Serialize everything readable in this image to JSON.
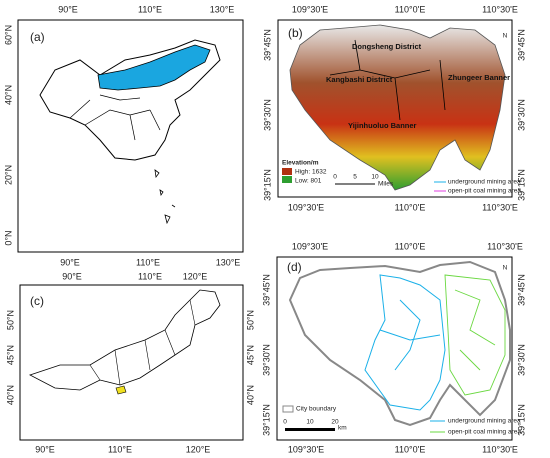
{
  "panels": [
    {
      "label": "(a)",
      "top_ticks": [
        "90°E",
        "110°E",
        "130°E"
      ],
      "bottom_ticks": [
        "90°E",
        "110°E",
        "130°E"
      ],
      "left_ticks": [
        "60°N",
        "40°N",
        "20°N",
        "0°N"
      ]
    },
    {
      "label": "(b)",
      "top_ticks": [
        "109°30'E",
        "110°0'E",
        "110°30'E"
      ],
      "bottom_ticks": [
        "109°30'E",
        "110°0'E",
        "110°30'E"
      ],
      "left_ticks": [
        "39°45'N",
        "39°30'N",
        "39°15'N"
      ],
      "right_ticks": [
        "39°45'N",
        "39°30'N",
        "39°15'N"
      ],
      "places": [
        "Dongsheng District",
        "Kangbashi District",
        "Zhungeer Banner",
        "Yijinhuoluo Banner"
      ],
      "legend": {
        "title": "Elevation/m",
        "high": "High: 1632",
        "low": "Low: 801",
        "scale": [
          "0",
          "5",
          "10"
        ],
        "scale_unit": "Miles",
        "items": [
          "underground mining area",
          "open-pit coal mining area"
        ]
      },
      "north": "N"
    },
    {
      "label": "(c)",
      "top_ticks": [
        "90°E",
        "110°E",
        "120°E"
      ],
      "bottom_ticks": [
        "90°E",
        "110°E",
        "120°E"
      ],
      "left_ticks": [
        "50°N",
        "45°N",
        "40°N"
      ],
      "right_ticks": [
        "50°N",
        "45°N",
        "40°N"
      ]
    },
    {
      "label": "(d)",
      "top_ticks": [
        "109°30'E",
        "110°0'E",
        "110°30'E"
      ],
      "bottom_ticks": [
        "109°30'E",
        "110°0'E",
        "110°30'E"
      ],
      "left_ticks": [
        "39°45'N",
        "39°30'N",
        "39°15'N"
      ],
      "right_ticks": [
        "39°45'N",
        "39°30'N",
        "39°15'N"
      ],
      "legend": {
        "boundary": "City boundary",
        "scale": [
          "0",
          "10",
          "20"
        ],
        "scale_unit": "km",
        "items": [
          "underground mining area",
          "open-pit coal mining area"
        ]
      },
      "north": "N"
    }
  ]
}
